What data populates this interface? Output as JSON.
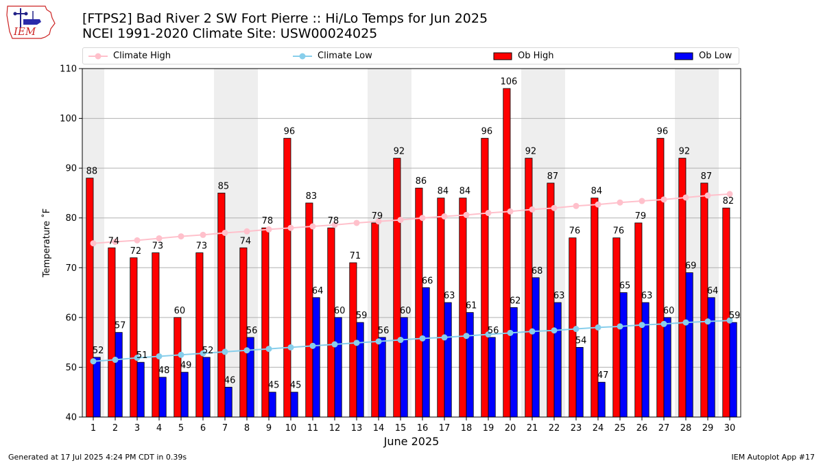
{
  "header": {
    "title_line1": "[FTPS2] Bad River 2 SW Fort Pierre :: Hi/Lo Temps for Jun 2025",
    "title_line2": "NCEI 1991-2020 Climate Site: USW00024025"
  },
  "logo": {
    "text": "IEM"
  },
  "footer": {
    "generated": "Generated at 17 Jul 2025 4:24 PM CDT in 0.39s",
    "app": "IEM Autoplot App #17"
  },
  "colors": {
    "ob_high": "#ff0000",
    "ob_low": "#0000ff",
    "climate_high": "#ffc0cb",
    "climate_low": "#87ceeb",
    "weekend_shade": "#eeeeee",
    "grid": "#b0b0b0"
  },
  "chart_data": {
    "type": "bar",
    "xlabel": "June 2025",
    "ylabel": "Temperature ˚F",
    "ylim": [
      40,
      110
    ],
    "yticks": [
      40,
      50,
      60,
      70,
      80,
      90,
      100,
      110
    ],
    "grid": true,
    "legend_placement": "top",
    "categories": [
      "1",
      "2",
      "3",
      "4",
      "5",
      "6",
      "7",
      "8",
      "9",
      "10",
      "11",
      "12",
      "13",
      "14",
      "15",
      "16",
      "17",
      "18",
      "19",
      "20",
      "21",
      "22",
      "23",
      "24",
      "25",
      "26",
      "27",
      "28",
      "29",
      "30"
    ],
    "shaded_day_ranges": [
      [
        1,
        1
      ],
      [
        7,
        8
      ],
      [
        14,
        15
      ],
      [
        21,
        22
      ],
      [
        28,
        29
      ]
    ],
    "series": [
      {
        "name": "Ob High",
        "kind": "bar",
        "values": [
          88,
          74,
          72,
          73,
          60,
          73,
          85,
          74,
          78,
          96,
          83,
          78,
          71,
          79,
          92,
          86,
          84,
          84,
          96,
          106,
          92,
          87,
          76,
          84,
          76,
          79,
          96,
          92,
          87,
          82
        ]
      },
      {
        "name": "Ob Low",
        "kind": "bar",
        "values": [
          52,
          57,
          51,
          48,
          49,
          52,
          46,
          56,
          45,
          45,
          64,
          60,
          59,
          56,
          60,
          66,
          63,
          61,
          56,
          62,
          68,
          63,
          54,
          47,
          65,
          63,
          60,
          69,
          64,
          59
        ]
      },
      {
        "name": "Climate High",
        "kind": "line",
        "values": [
          74.9,
          75.2,
          75.5,
          75.9,
          76.3,
          76.6,
          77.0,
          77.3,
          77.7,
          78.0,
          78.3,
          78.6,
          79.0,
          79.3,
          79.6,
          80.0,
          80.3,
          80.6,
          81.0,
          81.3,
          81.7,
          82.0,
          82.4,
          82.7,
          83.1,
          83.4,
          83.7,
          84.1,
          84.5,
          84.8
        ]
      },
      {
        "name": "Climate Low",
        "kind": "line",
        "values": [
          51.2,
          51.5,
          51.9,
          52.2,
          52.5,
          52.8,
          53.1,
          53.4,
          53.7,
          54.0,
          54.3,
          54.6,
          54.9,
          55.2,
          55.5,
          55.8,
          56.0,
          56.3,
          56.6,
          56.9,
          57.2,
          57.4,
          57.7,
          58.0,
          58.2,
          58.5,
          58.7,
          59.0,
          59.2,
          59.4
        ]
      }
    ]
  }
}
